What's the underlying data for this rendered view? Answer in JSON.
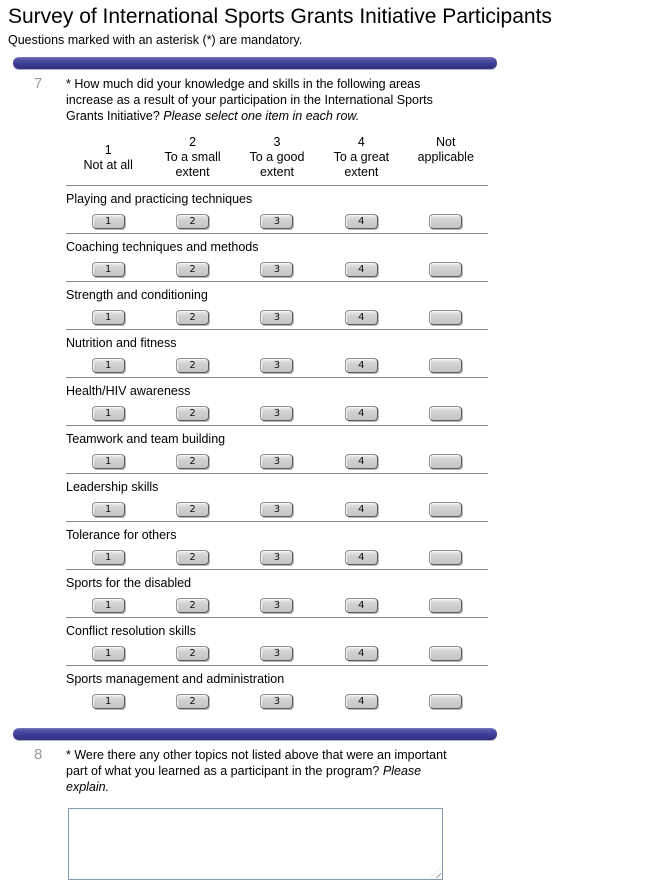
{
  "page": {
    "title": "Survey of International Sports Grants Initiative Participants",
    "subtitle": "Questions marked with an asterisk (*) are mandatory."
  },
  "question7": {
    "number": "7",
    "text_main": "* How much did your knowledge and skills in the following areas increase as a result of your participation in the International Sports Grants Initiative?",
    "text_instruction": "Please select one item in each row.",
    "columns": [
      "1\nNot at all",
      "2\nTo a small\nextent",
      "3\nTo a good\nextent",
      "4\nTo a great\nextent",
      "Not\napplicable"
    ],
    "scale_buttons": [
      "1",
      "2",
      "3",
      "4",
      ""
    ],
    "rows": [
      "Playing and practicing techniques",
      "Coaching techniques and methods",
      "Strength and conditioning",
      "Nutrition and fitness",
      "Health/HIV awareness",
      "Teamwork and team building",
      "Leadership skills",
      "Tolerance for others",
      "Sports for the disabled",
      "Conflict resolution skills",
      "Sports management and administration"
    ]
  },
  "question8": {
    "number": "8",
    "text_main": "* Were there any other topics not listed above that were an important part of what you learned as a participant in the program?",
    "text_instruction": "Please explain.",
    "textarea_value": ""
  },
  "colors": {
    "divider_bar": "#3e3e97",
    "row_line": "#85878c",
    "button_face": "#c6c6c6",
    "textarea_border": "#7f9db9",
    "question_number": "#9a9a9a"
  }
}
